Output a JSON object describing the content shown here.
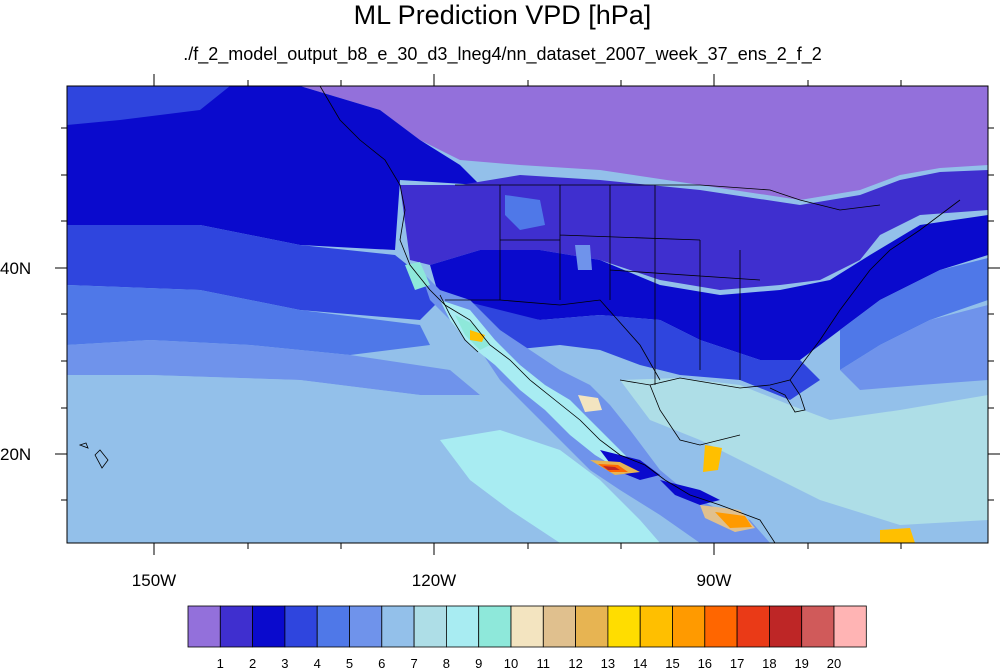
{
  "title": "ML Prediction VPD [hPa]",
  "subtitle": "./f_2_model_output_b8_e_30_d3_lneg4/nn_dataset_2007_week_37_ens_2_f_2",
  "lon_labels": [
    "150W",
    "120W",
    "90W"
  ],
  "lat_labels": [
    "40N",
    "20N"
  ],
  "colorbar": {
    "levels": [
      "1",
      "2",
      "3",
      "4",
      "5",
      "6",
      "7",
      "8",
      "9",
      "10",
      "11",
      "12",
      "13",
      "14",
      "15",
      "16",
      "17",
      "18",
      "19",
      "20"
    ],
    "colors": [
      "#9370DB",
      "#3F2FCF",
      "#0A0ACD",
      "#2F45DE",
      "#4F78E8",
      "#6F93EB",
      "#93C0EA",
      "#AEDEE7",
      "#A8ECF2",
      "#8EE8DA",
      "#F3E4C0",
      "#E0C08E",
      "#E7B452",
      "#FFDD00",
      "#FFBF00",
      "#FF9A00",
      "#FF6600",
      "#EA3A17",
      "#BE2626",
      "#D05A5A",
      "#FFB4B4"
    ]
  },
  "map_bounds": {
    "lon_min": -160,
    "lon_max": -55,
    "lat_min": 10,
    "lat_max": 60
  }
}
